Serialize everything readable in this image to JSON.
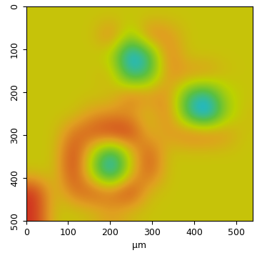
{
  "chart_data": {
    "type": "heatmap",
    "x_label": "µm",
    "xlim": [
      0,
      540
    ],
    "ylim": [
      500,
      0
    ],
    "xticks": [
      0,
      100,
      200,
      300,
      400,
      500
    ],
    "yticks": [
      0,
      100,
      200,
      300,
      400,
      500
    ],
    "cells": [
      [
        0.6,
        0.6,
        0.6,
        0.6,
        0.6,
        0.6,
        0.6,
        0.6,
        0.6,
        0.6,
        0.6,
        0.6
      ],
      [
        0.6,
        0.6,
        0.6,
        0.6,
        0.75,
        0.5,
        0.75,
        0.7,
        0.6,
        0.6,
        0.6,
        0.6
      ],
      [
        0.6,
        0.6,
        0.6,
        0.6,
        0.55,
        0.2,
        0.35,
        0.75,
        0.6,
        0.6,
        0.6,
        0.6
      ],
      [
        0.6,
        0.6,
        0.6,
        0.6,
        0.65,
        0.3,
        0.4,
        0.7,
        0.7,
        0.7,
        0.62,
        0.6
      ],
      [
        0.6,
        0.6,
        0.6,
        0.6,
        0.6,
        0.75,
        0.7,
        0.7,
        0.4,
        0.3,
        0.55,
        0.6
      ],
      [
        0.6,
        0.6,
        0.6,
        0.68,
        0.7,
        0.68,
        0.6,
        0.75,
        0.35,
        0.15,
        0.5,
        0.62
      ],
      [
        0.6,
        0.6,
        0.75,
        0.8,
        0.85,
        0.85,
        0.62,
        0.68,
        0.75,
        0.75,
        0.7,
        0.6
      ],
      [
        0.6,
        0.6,
        0.85,
        0.55,
        0.3,
        0.6,
        0.8,
        0.6,
        0.6,
        0.6,
        0.6,
        0.6
      ],
      [
        0.6,
        0.6,
        0.85,
        0.5,
        0.2,
        0.6,
        0.8,
        0.6,
        0.6,
        0.6,
        0.6,
        0.6
      ],
      [
        0.85,
        0.6,
        0.75,
        0.8,
        0.75,
        0.85,
        0.62,
        0.6,
        0.6,
        0.6,
        0.6,
        0.6
      ],
      [
        0.85,
        0.6,
        0.6,
        0.62,
        0.68,
        0.62,
        0.6,
        0.6,
        0.6,
        0.6,
        0.6,
        0.6
      ]
    ]
  }
}
